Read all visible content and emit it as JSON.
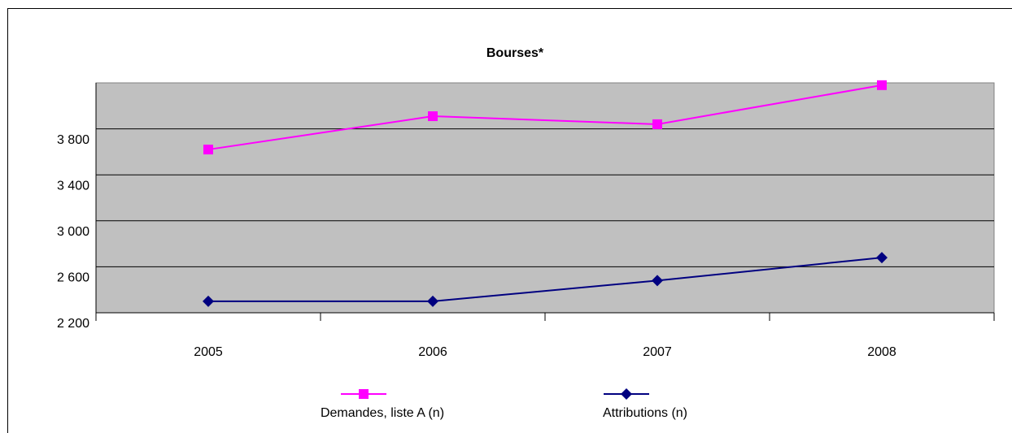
{
  "chart_data": {
    "type": "line",
    "title": "Bourses*",
    "categories": [
      "2005",
      "2006",
      "2007",
      "2008"
    ],
    "series": [
      {
        "name": "Demandes, liste A (n)",
        "color": "#ff00ff",
        "marker": "square",
        "values": [
          3620,
          3910,
          3840,
          4180
        ]
      },
      {
        "name": "Attributions (n)",
        "color": "#000080",
        "marker": "diamond",
        "values": [
          2300,
          2300,
          2480,
          2680
        ]
      }
    ],
    "ylim": [
      2200,
      4200
    ],
    "yticks": [
      {
        "value": 2200,
        "label": "2 200"
      },
      {
        "value": 2600,
        "label": "2 600"
      },
      {
        "value": 3000,
        "label": "3 000"
      },
      {
        "value": 3400,
        "label": "3 400"
      },
      {
        "value": 3800,
        "label": "3 800"
      }
    ],
    "grid": true,
    "plot_background": "#c0c0c0",
    "legend": "bottom"
  }
}
